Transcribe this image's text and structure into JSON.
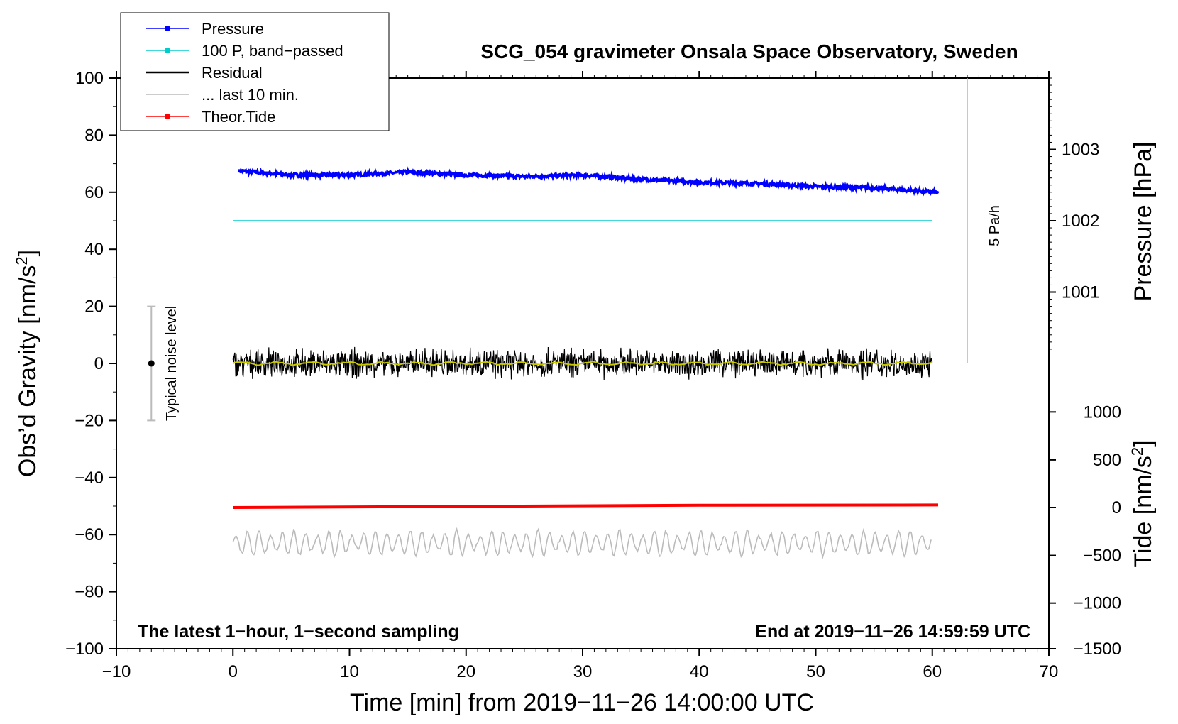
{
  "chart_data": {
    "type": "line",
    "title": "SCG_054 gravimeter Onsala Space Observatory, Sweden",
    "xlabel": "Time [min] from 2019−11−26 14:00:00 UTC",
    "ylabel_left": "Obs’d Gravity [nm/s",
    "ylabel_left_sup": "2",
    "ylabel_left_end": "]",
    "ylabel_right_pressure": "Pressure [hPa]",
    "ylabel_right_tide": "Tide [nm/s",
    "ylabel_right_tide_sup": "2",
    "ylabel_right_tide_end": "]",
    "xlim": [
      -10,
      70
    ],
    "ylim": [
      -100,
      100
    ],
    "x_ticks": [
      "−10",
      "0",
      "10",
      "20",
      "30",
      "40",
      "50",
      "60",
      "70"
    ],
    "x_tick_values": [
      -10,
      0,
      10,
      20,
      30,
      40,
      50,
      60,
      70
    ],
    "y_ticks": [
      "100",
      "80",
      "60",
      "40",
      "20",
      "0",
      "−20",
      "−40",
      "−60",
      "−80",
      "−100"
    ],
    "y_tick_values": [
      100,
      80,
      60,
      40,
      20,
      0,
      -20,
      -40,
      -60,
      -80,
      -100
    ],
    "pressure_ticks": [
      "1003",
      "1002",
      "1001"
    ],
    "pressure_tick_values": [
      1003,
      1002,
      1001
    ],
    "pressure_gravity_equiv": [
      75,
      50,
      25
    ],
    "tide_ticks": [
      "1000",
      "500",
      "0",
      "−500",
      "−1000",
      "−1500"
    ],
    "tide_tick_values": [
      1000,
      500,
      0,
      -500,
      -1000,
      -1500
    ],
    "tide_gravity_equiv": [
      -17,
      -33.8,
      -50.5,
      -67.3,
      -84,
      -100
    ],
    "legend": [
      {
        "label": "Pressure",
        "color": "#0000ff",
        "marker": true
      },
      {
        "label": "100 P, band−passed",
        "color": "#00cccc",
        "marker": true
      },
      {
        "label": "Residual",
        "color": "#000000",
        "marker": false
      },
      {
        "label": "... last 10 min.",
        "color": "#bbbbbb",
        "marker": false
      },
      {
        "label": "Theor.Tide",
        "color": "#ff0000",
        "marker": true
      }
    ],
    "series": [
      {
        "name": "Pressure",
        "color": "#0000ff",
        "x": [
          0.5,
          5,
          10,
          15,
          20,
          25,
          30,
          35,
          40,
          45,
          50,
          55,
          60.5
        ],
        "y": [
          67.5,
          66,
          66,
          67,
          66,
          65.5,
          66,
          64.5,
          63.5,
          63,
          62,
          61.5,
          60
        ]
      },
      {
        "name": "100 P, band−passed",
        "color": "#00cccc",
        "x": [
          0,
          60
        ],
        "y": [
          50,
          50
        ]
      },
      {
        "name": "Residual",
        "color": "#000000",
        "x_range": [
          0,
          60
        ],
        "center": 0,
        "amplitude": 5
      },
      {
        "name": "... last 10 min.",
        "color": "#bbbbbb",
        "x_range": [
          0,
          60
        ],
        "center": -63,
        "amplitude": 4
      },
      {
        "name": "Theor.Tide",
        "color": "#ff0000",
        "x": [
          0,
          20,
          40,
          60.5
        ],
        "y": [
          -50.5,
          -50.1,
          -49.7,
          -49.6
        ]
      }
    ],
    "noise_bar": {
      "label": "Typical noise level",
      "x": -7,
      "y": 0,
      "half_range": 20
    },
    "scale_bar": {
      "label": "5 Pa/h",
      "x": 63,
      "y_from": 0,
      "y_to": 100
    },
    "note_left": "The latest 1−hour, 1−second sampling",
    "note_right": "End at 2019−11−26 14:59:59 UTC"
  }
}
